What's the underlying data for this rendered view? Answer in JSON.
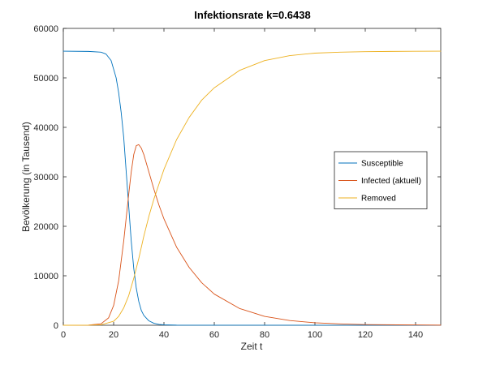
{
  "chart_data": {
    "type": "line",
    "title": "Infektionsrate k=0.6438",
    "xlabel": "Zeit t",
    "ylabel": "Bevölkerung (in Tausend)",
    "xlim": [
      0,
      150
    ],
    "ylim": [
      0,
      60000
    ],
    "xticks": [
      0,
      20,
      40,
      60,
      80,
      100,
      120,
      140
    ],
    "yticks": [
      0,
      10000,
      20000,
      30000,
      40000,
      50000,
      60000
    ],
    "grid": false,
    "legend_position": "right",
    "series": [
      {
        "name": "Susceptible",
        "color": "#0072BD",
        "x": [
          0,
          10,
          15,
          17,
          19,
          21,
          22,
          23,
          24,
          25,
          26,
          27,
          28,
          29,
          30,
          31,
          32,
          34,
          36,
          38,
          40,
          45,
          150
        ],
        "y": [
          55400,
          55350,
          55200,
          54800,
          53500,
          50000,
          47000,
          43000,
          38000,
          31000,
          24000,
          17000,
          11500,
          7500,
          4800,
          3000,
          2000,
          900,
          400,
          180,
          80,
          20,
          0
        ]
      },
      {
        "name": "Infected (aktuell)",
        "color": "#D95319",
        "x": [
          0,
          10,
          15,
          18,
          20,
          22,
          24,
          26,
          27,
          28,
          29,
          30,
          31,
          32,
          34,
          36,
          38,
          40,
          45,
          50,
          55,
          60,
          70,
          80,
          90,
          100,
          110,
          120,
          150
        ],
        "y": [
          0,
          30,
          300,
          1500,
          4000,
          9000,
          17000,
          26500,
          31000,
          34500,
          36300,
          36500,
          35800,
          34500,
          31000,
          27500,
          24300,
          21500,
          15800,
          11700,
          8600,
          6300,
          3400,
          1800,
          950,
          500,
          270,
          140,
          20
        ]
      },
      {
        "name": "Removed",
        "color": "#EDB120",
        "x": [
          0,
          10,
          15,
          20,
          22,
          24,
          26,
          28,
          30,
          32,
          34,
          36,
          38,
          40,
          45,
          50,
          55,
          60,
          70,
          80,
          90,
          100,
          110,
          120,
          130,
          150
        ],
        "y": [
          0,
          10,
          100,
          800,
          1800,
          3500,
          6000,
          9500,
          13500,
          18000,
          22000,
          25500,
          28500,
          31500,
          37500,
          42000,
          45500,
          48000,
          51500,
          53500,
          54500,
          55000,
          55200,
          55300,
          55350,
          55400
        ]
      }
    ]
  }
}
